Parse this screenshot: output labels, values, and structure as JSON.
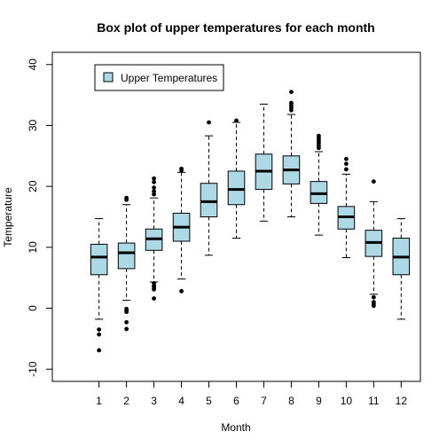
{
  "chart_data": {
    "type": "box",
    "title": "Box plot of upper temperatures for each month",
    "xlabel": "Month",
    "ylabel": "Temperature",
    "ylim": [
      -12,
      42
    ],
    "yticks": [
      -10,
      0,
      10,
      20,
      30,
      40
    ],
    "categories": [
      "1",
      "2",
      "3",
      "4",
      "5",
      "6",
      "7",
      "8",
      "9",
      "10",
      "11",
      "12"
    ],
    "legend": {
      "label": "Upper Temperatures",
      "position": "top-left",
      "color": "#add8e6"
    },
    "fill_color": "#add8e6",
    "boxes": [
      {
        "month": "1",
        "lower_whisker": -1.8,
        "q1": 5.5,
        "median": 8.4,
        "q3": 10.5,
        "upper_whisker": 14.7,
        "outliers": [
          -3.5,
          -4.3,
          -6.9
        ]
      },
      {
        "month": "2",
        "lower_whisker": 1.3,
        "q1": 6.5,
        "median": 9.1,
        "q3": 10.7,
        "upper_whisker": 17.0,
        "outliers": [
          17.8,
          18.1,
          -0.1,
          -0.3,
          -0.6,
          -2.3,
          -3.4
        ]
      },
      {
        "month": "3",
        "lower_whisker": 4.3,
        "q1": 9.5,
        "median": 11.4,
        "q3": 13.0,
        "upper_whisker": 18.1,
        "outliers": [
          18.7,
          19.2,
          19.8,
          20.7,
          21.3,
          4.1,
          3.7,
          3.4,
          3.1,
          1.6
        ]
      },
      {
        "month": "4",
        "lower_whisker": 4.8,
        "q1": 11.0,
        "median": 13.3,
        "q3": 15.6,
        "upper_whisker": 22.3,
        "outliers": [
          22.6,
          22.9,
          2.8
        ]
      },
      {
        "month": "5",
        "lower_whisker": 8.7,
        "q1": 15.0,
        "median": 17.5,
        "q3": 20.5,
        "upper_whisker": 28.3,
        "outliers": [
          30.5
        ]
      },
      {
        "month": "6",
        "lower_whisker": 11.5,
        "q1": 17.0,
        "median": 19.5,
        "q3": 22.5,
        "upper_whisker": 30.5,
        "outliers": [
          30.8
        ]
      },
      {
        "month": "7",
        "lower_whisker": 14.3,
        "q1": 19.5,
        "median": 22.5,
        "q3": 25.3,
        "upper_whisker": 33.5,
        "outliers": []
      },
      {
        "month": "8",
        "lower_whisker": 15.0,
        "q1": 20.4,
        "median": 22.7,
        "q3": 25.0,
        "upper_whisker": 31.8,
        "outliers": [
          32.5,
          32.9,
          33.3,
          33.7,
          35.5
        ]
      },
      {
        "month": "9",
        "lower_whisker": 12.0,
        "q1": 17.2,
        "median": 18.8,
        "q3": 20.8,
        "upper_whisker": 25.7,
        "outliers": [
          26.3,
          26.7,
          27.1,
          27.5,
          27.9,
          28.3
        ]
      },
      {
        "month": "10",
        "lower_whisker": 8.3,
        "q1": 13.0,
        "median": 15.0,
        "q3": 16.7,
        "upper_whisker": 22.0,
        "outliers": [
          22.8,
          23.7,
          24.5
        ]
      },
      {
        "month": "11",
        "lower_whisker": 2.3,
        "q1": 8.5,
        "median": 10.8,
        "q3": 12.8,
        "upper_whisker": 17.5,
        "outliers": [
          20.8,
          1.8,
          1.0,
          0.7,
          0.4
        ]
      },
      {
        "month": "12",
        "lower_whisker": -1.8,
        "q1": 5.5,
        "median": 8.4,
        "q3": 11.5,
        "upper_whisker": 14.7,
        "outliers": []
      }
    ]
  }
}
